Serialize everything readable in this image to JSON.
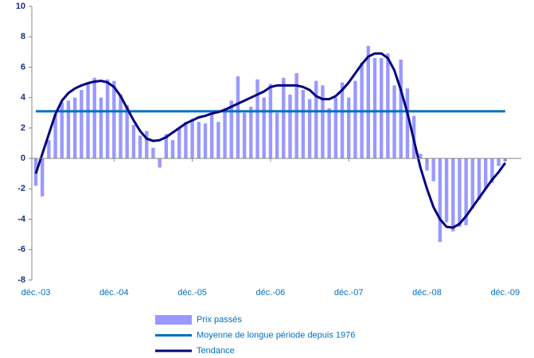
{
  "chart_data": {
    "type": "bar",
    "categories": [
      "déc.-03",
      null,
      null,
      null,
      null,
      null,
      null,
      null,
      null,
      null,
      null,
      null,
      "déc.-04",
      null,
      null,
      null,
      null,
      null,
      null,
      null,
      null,
      null,
      null,
      null,
      "déc.-05",
      null,
      null,
      null,
      null,
      null,
      null,
      null,
      null,
      null,
      null,
      null,
      "déc.-06",
      null,
      null,
      null,
      null,
      null,
      null,
      null,
      null,
      null,
      null,
      null,
      "déc.-07",
      null,
      null,
      null,
      null,
      null,
      null,
      null,
      null,
      null,
      null,
      null,
      "déc.-08",
      null,
      null,
      null,
      null,
      null,
      null,
      null,
      null,
      null,
      null,
      null,
      "déc.-09"
    ],
    "series": [
      {
        "name": "Prix passés",
        "type": "bar",
        "color": "#9999ff",
        "values": [
          -1.8,
          -2.5,
          1.2,
          2.9,
          3.7,
          3.8,
          4.0,
          4.5,
          5.0,
          5.3,
          4.0,
          5.2,
          5.1,
          4.2,
          3.5,
          2.2,
          1.5,
          1.8,
          0.7,
          -0.6,
          1.6,
          1.2,
          2.0,
          2.4,
          2.6,
          2.4,
          2.3,
          2.9,
          2.4,
          3.3,
          3.8,
          5.4,
          3.0,
          3.4,
          5.2,
          4.0,
          4.9,
          3.0,
          5.3,
          4.2,
          5.6,
          4.5,
          3.9,
          5.1,
          4.8,
          3.3,
          4.0,
          5.0,
          4.0,
          5.1,
          6.3,
          7.4,
          6.6,
          6.6,
          6.9,
          4.8,
          6.5,
          4.6,
          2.8,
          0.3,
          -0.8,
          -1.5,
          -5.5,
          -4.2,
          -4.8,
          -4.5,
          -4.4,
          -3.3,
          -2.7,
          -2.0,
          -1.6,
          -0.5,
          -0.2
        ]
      },
      {
        "name": "Moyenne de longue période depuis 1976",
        "type": "line",
        "color": "#0070c0",
        "values": [
          3.1,
          3.1,
          3.1,
          3.1,
          3.1,
          3.1,
          3.1,
          3.1,
          3.1,
          3.1,
          3.1,
          3.1,
          3.1,
          3.1,
          3.1,
          3.1,
          3.1,
          3.1,
          3.1,
          3.1,
          3.1,
          3.1,
          3.1,
          3.1,
          3.1,
          3.1,
          3.1,
          3.1,
          3.1,
          3.1,
          3.1,
          3.1,
          3.1,
          3.1,
          3.1,
          3.1,
          3.1,
          3.1,
          3.1,
          3.1,
          3.1,
          3.1,
          3.1,
          3.1,
          3.1,
          3.1,
          3.1,
          3.1,
          3.1,
          3.1,
          3.1,
          3.1,
          3.1,
          3.1,
          3.1,
          3.1,
          3.1,
          3.1,
          3.1,
          3.1,
          3.1,
          3.1,
          3.1,
          3.1,
          3.1,
          3.1,
          3.1,
          3.1,
          3.1,
          3.1,
          3.1,
          3.1,
          3.1
        ]
      },
      {
        "name": "Tendance",
        "type": "line",
        "color": "#000080",
        "values": [
          -1.0,
          0.3,
          1.6,
          2.9,
          3.8,
          4.3,
          4.6,
          4.8,
          4.95,
          5.05,
          5.1,
          5.0,
          4.7,
          4.1,
          3.3,
          2.5,
          1.8,
          1.3,
          1.15,
          1.2,
          1.4,
          1.7,
          2.0,
          2.3,
          2.5,
          2.7,
          2.8,
          2.95,
          3.05,
          3.2,
          3.4,
          3.6,
          3.8,
          4.0,
          4.2,
          4.4,
          4.7,
          4.8,
          4.8,
          4.8,
          4.8,
          4.7,
          4.5,
          4.1,
          3.9,
          3.9,
          4.1,
          4.5,
          5.0,
          5.6,
          6.2,
          6.7,
          6.9,
          6.9,
          6.6,
          5.8,
          4.5,
          3.0,
          1.2,
          -0.6,
          -2.0,
          -3.2,
          -4.0,
          -4.5,
          -4.55,
          -4.3,
          -3.8,
          -3.2,
          -2.6,
          -2.0,
          -1.4,
          -0.9,
          -0.3
        ]
      }
    ],
    "ylim": [
      -8,
      10
    ],
    "yticks": [
      -8,
      -6,
      -4,
      -2,
      0,
      2,
      4,
      6,
      8,
      10
    ]
  }
}
